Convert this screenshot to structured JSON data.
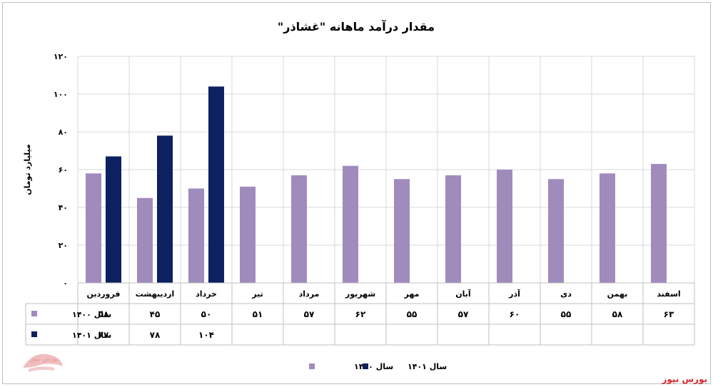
{
  "chart_data": {
    "type": "bar",
    "title": "مقدار درآمد ماهانه \"غشاذر\"",
    "ylabel": "میلیارد تومان",
    "ylim": [
      0,
      120
    ],
    "yticks": [
      0,
      20,
      40,
      60,
      80,
      100,
      120
    ],
    "ytick_labels": [
      "۰",
      "۲۰",
      "۴۰",
      "۶۰",
      "۸۰",
      "۱۰۰",
      "۱۲۰"
    ],
    "grid": true,
    "legend_position": "bottom",
    "categories": [
      "فروردین",
      "اردیبهشت",
      "خرداد",
      "تیر",
      "مرداد",
      "شهریور",
      "مهر",
      "آبان",
      "آذر",
      "دی",
      "بهمن",
      "اسفند"
    ],
    "series": [
      {
        "name": "سال ۱۴۰۰",
        "color": "#a08bbd",
        "values": [
          58,
          45,
          50,
          51,
          57,
          62,
          55,
          57,
          60,
          55,
          58,
          63
        ],
        "labels": [
          "۵۸",
          "۴۵",
          "۵۰",
          "۵۱",
          "۵۷",
          "۶۲",
          "۵۵",
          "۵۷",
          "۶۰",
          "۵۵",
          "۵۸",
          "۶۳"
        ]
      },
      {
        "name": "سال ۱۴۰۱",
        "color": "#0d2060",
        "values": [
          67,
          78,
          104,
          null,
          null,
          null,
          null,
          null,
          null,
          null,
          null,
          null
        ],
        "labels": [
          "۶۷",
          "۷۸",
          "۱۰۴",
          "",
          "",
          "",
          "",
          "",
          "",
          "",
          "",
          ""
        ]
      }
    ]
  },
  "footer": {
    "brand": "بورس نیوز",
    "watermark_text": "بورس نیوز"
  }
}
